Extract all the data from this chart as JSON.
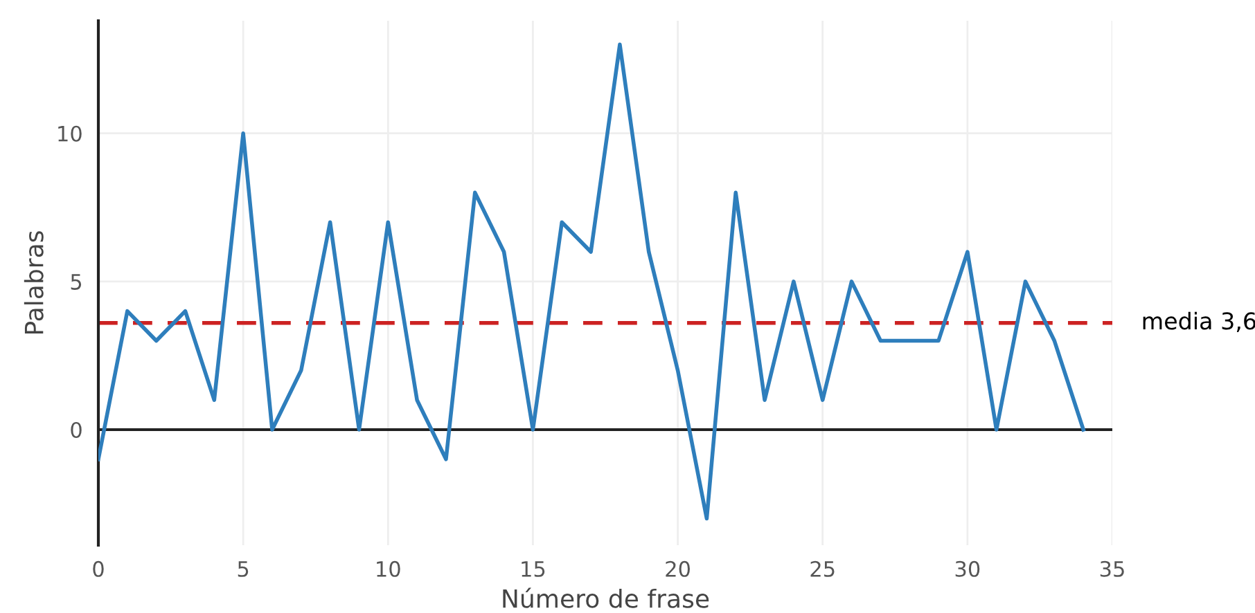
{
  "chart_data": {
    "type": "line",
    "xlabel": "Número de frase",
    "ylabel": "Palabras",
    "x": [
      0,
      1,
      2,
      3,
      4,
      5,
      6,
      7,
      8,
      9,
      10,
      11,
      12,
      13,
      14,
      15,
      16,
      17,
      18,
      19,
      20,
      21,
      22,
      23,
      24,
      25,
      26,
      27,
      28,
      29,
      30,
      31,
      32,
      33,
      34
    ],
    "series": [
      {
        "color": "#2e7ebc",
        "values": [
          -1,
          4,
          3,
          4,
          1,
          10,
          0,
          2,
          7,
          0,
          7,
          1,
          -1,
          8,
          6,
          0,
          7,
          6,
          13,
          6,
          2,
          -3,
          8,
          1,
          5,
          1,
          5,
          3,
          3,
          3,
          6,
          0,
          5,
          3,
          0
        ]
      }
    ],
    "xlim": [
      0,
      35
    ],
    "xticks": [
      0,
      5,
      10,
      15,
      20,
      25,
      30,
      35
    ],
    "ylim": [
      -3.9,
      13.8
    ],
    "yticks": [
      0,
      5,
      10
    ],
    "grid": true,
    "legend": false,
    "marker": "none",
    "line_style": "solid",
    "ref_lines": [
      {
        "axis": "y",
        "value": 0,
        "color": "#222222",
        "line_style": "solid"
      },
      {
        "axis": "y",
        "value": 3.6,
        "label": "media 3,6",
        "color": "#cc2222",
        "line_style": "dashed"
      }
    ]
  }
}
